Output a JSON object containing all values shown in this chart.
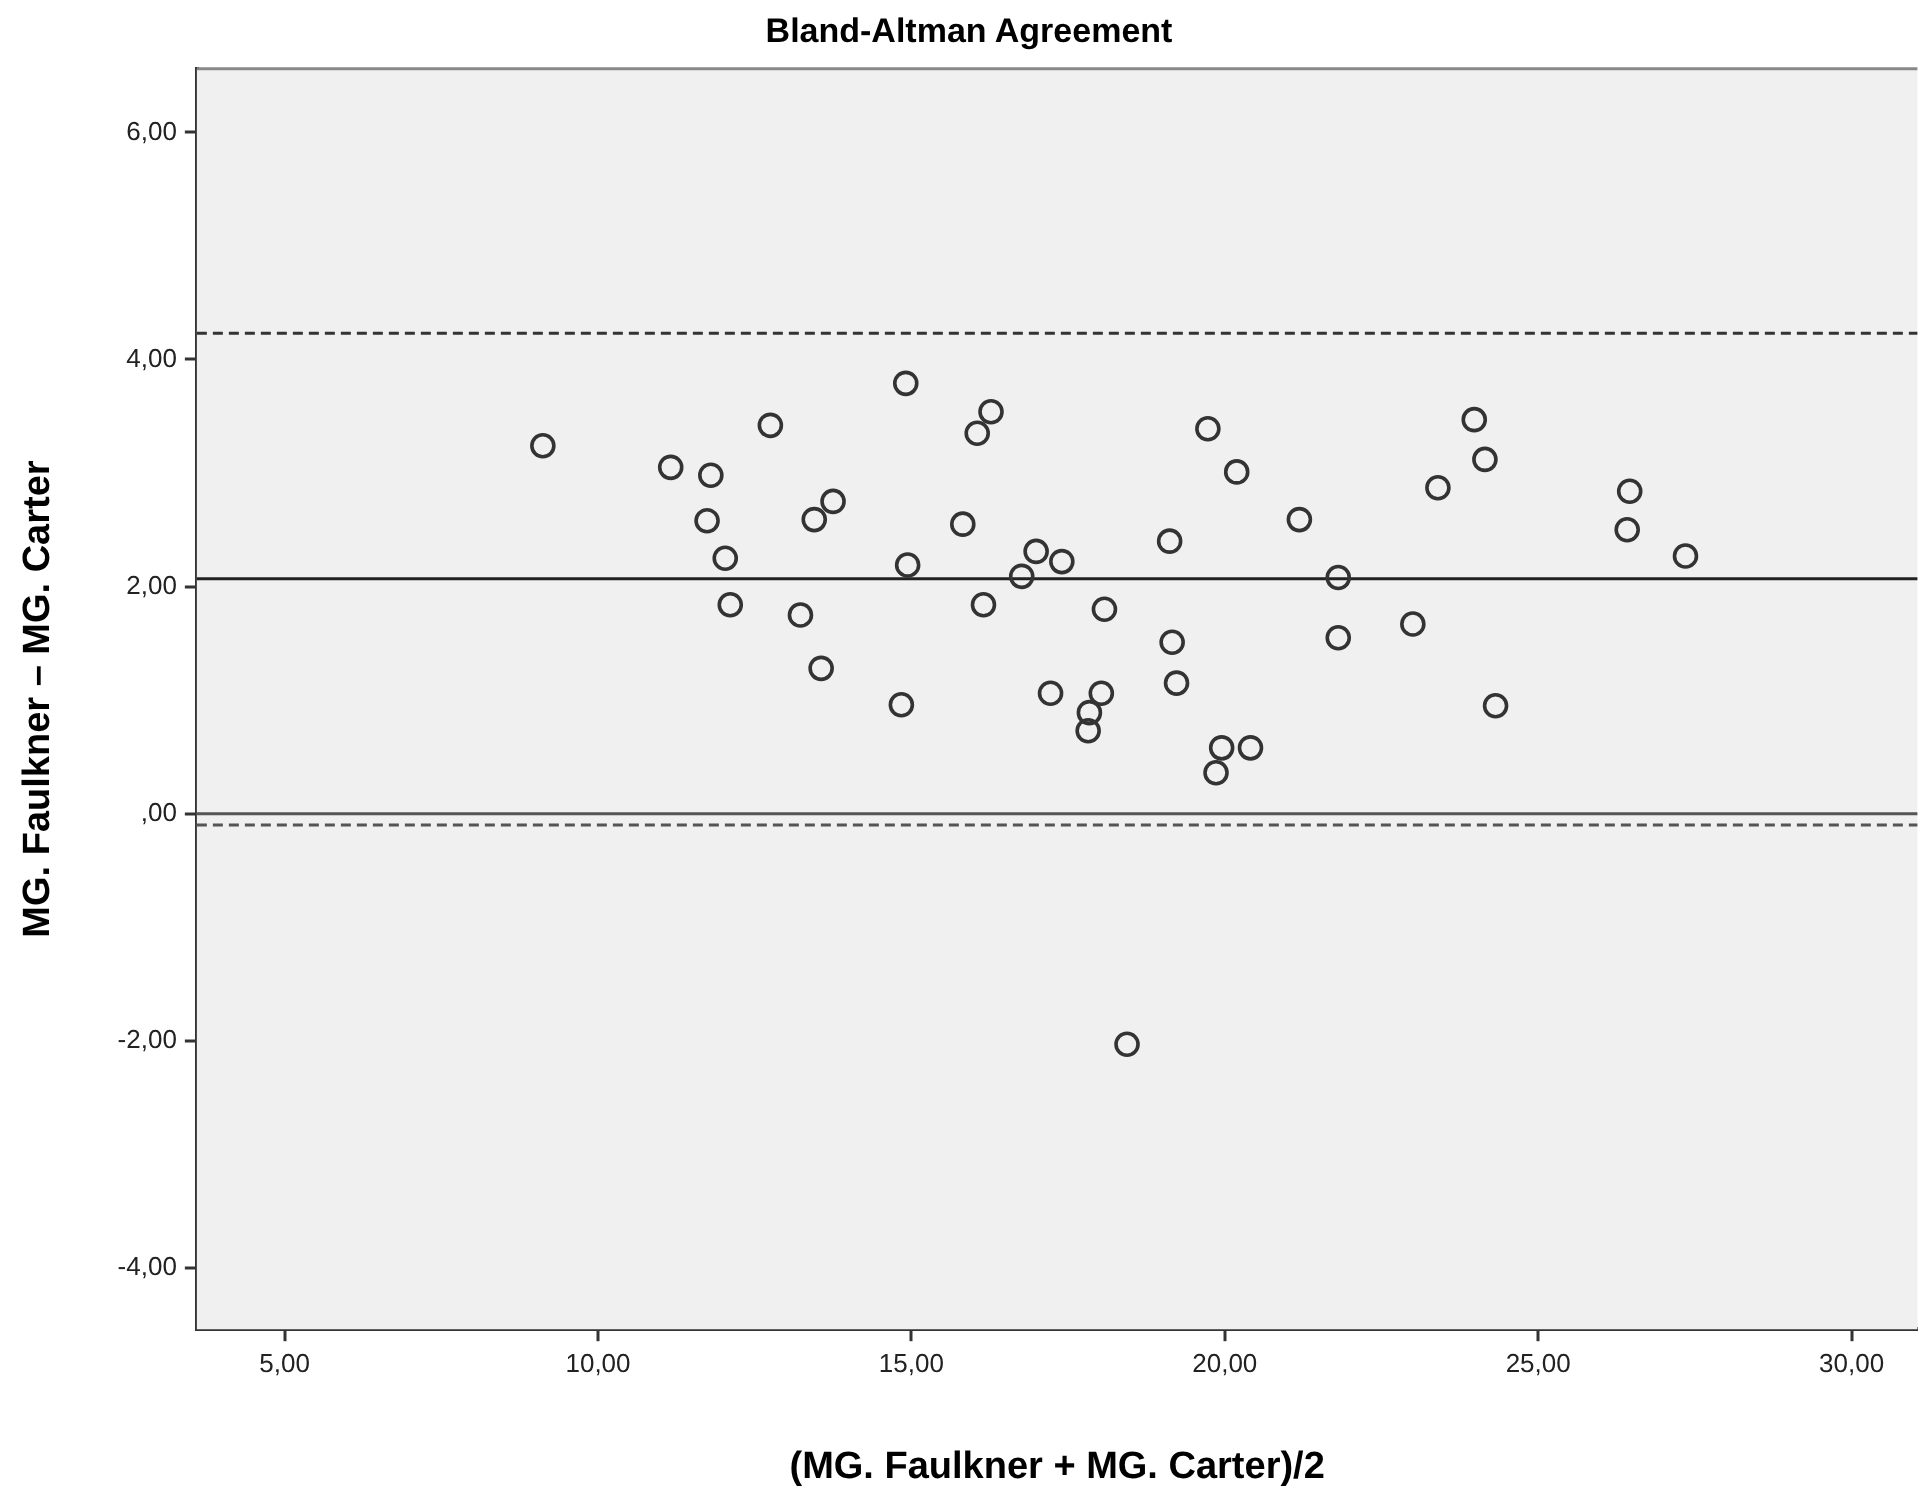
{
  "chart_data": {
    "type": "scatter",
    "title": "Bland-Altman Agreement",
    "xlabel": "(MG. Faulkner + MG. Carter)/2",
    "ylabel": "MG. Faulkner – MG. Carter",
    "xlim": [
      3.6,
      31.05
    ],
    "ylim": [
      -4.54,
      6.56
    ],
    "xticks": [
      {
        "value": 5,
        "label": "5,00"
      },
      {
        "value": 10,
        "label": "10,00"
      },
      {
        "value": 15,
        "label": "15,00"
      },
      {
        "value": 20,
        "label": "20,00"
      },
      {
        "value": 25,
        "label": "25,00"
      },
      {
        "value": 30,
        "label": "30,00"
      }
    ],
    "yticks": [
      {
        "value": -4,
        "label": "-4,00"
      },
      {
        "value": -2,
        "label": "-2,00"
      },
      {
        "value": 0,
        "label": ",00"
      },
      {
        "value": 2,
        "label": "2,00"
      },
      {
        "value": 4,
        "label": "4,00"
      },
      {
        "value": 6,
        "label": "6,00"
      }
    ],
    "grid": false,
    "legend": false,
    "marker": "circle",
    "ref_lines": [
      {
        "axis": "y",
        "value": 4.23,
        "color": "#333333",
        "line_style": "dashed"
      },
      {
        "axis": "y",
        "value": 2.07,
        "color": "#222222",
        "line_style": "solid"
      },
      {
        "axis": "y",
        "value": 0,
        "color": "#555555",
        "line_style": "solid"
      },
      {
        "axis": "y",
        "value": -0.1,
        "color": "#555555",
        "line_style": "dashed"
      }
    ],
    "series": [
      {
        "color": "#333333",
        "x": [
          9.12,
          11.16,
          11.8,
          12.75,
          11.74,
          13.45,
          13.75,
          12.03,
          12.11,
          13.23,
          13.56,
          14.91,
          16.27,
          16.05,
          15.82,
          14.94,
          16.15,
          14.84,
          16.99,
          16.76,
          17.22,
          17.4,
          18.08,
          18.03,
          17.84,
          17.82,
          19.73,
          20.19,
          19.12,
          19.16,
          19.23,
          19.95,
          20.41,
          19.86,
          21.19,
          21.81,
          21.81,
          23.0,
          23.4,
          23.98,
          24.15,
          24.32,
          26.46,
          26.42,
          27.35,
          18.44
        ],
        "values": [
          3.24,
          3.05,
          2.98,
          3.42,
          2.58,
          2.59,
          2.75,
          2.25,
          1.84,
          1.75,
          1.28,
          3.79,
          3.54,
          3.35,
          2.55,
          2.19,
          1.84,
          0.96,
          2.31,
          2.09,
          1.06,
          2.22,
          1.8,
          1.06,
          0.89,
          0.73,
          3.39,
          3.01,
          2.4,
          1.51,
          1.15,
          0.58,
          0.58,
          0.36,
          2.59,
          2.08,
          1.55,
          1.67,
          2.87,
          3.47,
          3.12,
          0.95,
          2.84,
          2.5,
          2.27,
          -2.03
        ]
      }
    ]
  }
}
